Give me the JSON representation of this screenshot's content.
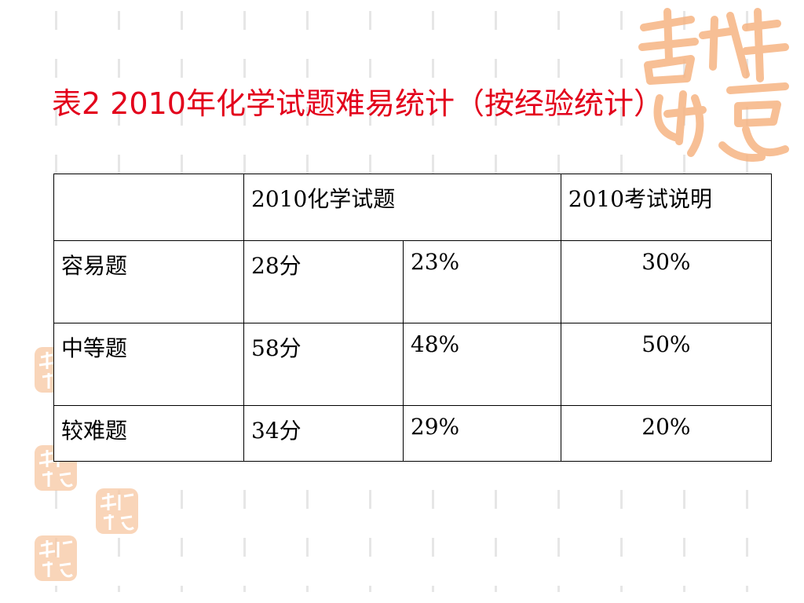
{
  "slide": {
    "title": "表2  2010年化学试题难易统计（按经验统计）",
    "decoration": {
      "seal_icon": "ji-xiang-ru-yi-seal",
      "seal_text": "吉祥如意",
      "color": "#e3001b",
      "seal_color": "#f4a76a"
    }
  },
  "table": {
    "header": {
      "blank": "",
      "group1": "2010化学试题",
      "group2": "2010考试说明"
    },
    "rows": [
      {
        "label": "容易题",
        "score": "28分",
        "percent": "23%",
        "guide": "30%"
      },
      {
        "label": "中等题",
        "score": "58分",
        "percent": "48%",
        "guide": "50%"
      },
      {
        "label": "较难题",
        "score": "34分",
        "percent": "29%",
        "guide": "20%"
      }
    ]
  }
}
